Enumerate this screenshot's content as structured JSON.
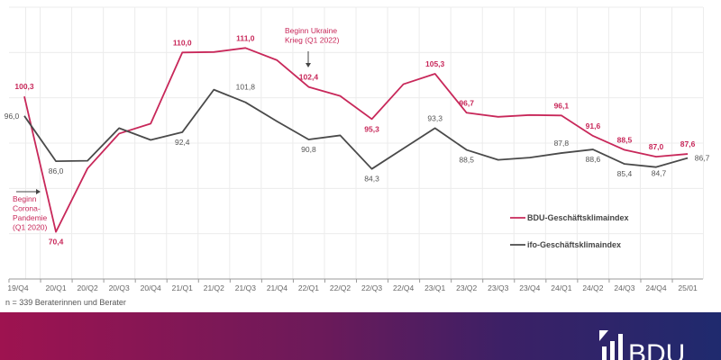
{
  "chart_data": {
    "type": "line",
    "title": "",
    "xlabel": "",
    "ylabel": "",
    "ylim": [
      60,
      120
    ],
    "grid": true,
    "legend_position": "right",
    "categories": [
      "19/Q4",
      "20/Q1",
      "20/Q2",
      "20/Q3",
      "20/Q4",
      "21/Q1",
      "21/Q2",
      "21/Q3",
      "21/Q4",
      "22/Q1",
      "22/Q2",
      "22/Q3",
      "22/Q4",
      "23/Q1",
      "23/Q2",
      "23/Q3",
      "23/Q4",
      "24/Q1",
      "24/Q2",
      "24/Q3",
      "24/Q4",
      "25/01"
    ],
    "series": [
      {
        "name": "BDU-Geschäftsklimaindex",
        "color": "#c8285a",
        "values": [
          100.3,
          70.4,
          84.4,
          92.1,
          94.3,
          110.0,
          110.1,
          111.0,
          108.3,
          102.4,
          100.4,
          95.3,
          103.0,
          105.3,
          96.7,
          95.8,
          96.2,
          96.1,
          91.6,
          88.5,
          87.0,
          87.6
        ],
        "labels": {
          "0": "100,3",
          "1": "70,4",
          "5": "110,0",
          "7": "111,0",
          "9": "102,4",
          "11": "95,3",
          "13": "105,3",
          "14": "96,7",
          "17": "96,1",
          "18": "91,6",
          "19": "88,5",
          "20": "87,0",
          "21": "87,6"
        }
      },
      {
        "name": "ifo-Geschäftsklimaindex",
        "color": "#4a4a4a",
        "values": [
          96.0,
          86.0,
          86.1,
          93.3,
          90.7,
          92.4,
          101.8,
          99.0,
          94.8,
          90.8,
          91.7,
          84.3,
          88.8,
          93.3,
          88.5,
          86.3,
          86.8,
          87.8,
          88.6,
          85.4,
          84.7,
          86.7
        ],
        "labels": {
          "0": "96,0",
          "1": "86,0",
          "5": "92,4",
          "6": "101,8",
          "9": "90,8",
          "11": "84,3",
          "13": "93,3",
          "14": "88,5",
          "17": "87,8",
          "18": "88,6",
          "19": "85,4",
          "20": "84,7",
          "21": "86,7"
        }
      }
    ],
    "annotations": [
      {
        "text_lines": [
          "Beginn",
          "Corona-",
          "Pandemie",
          "(Q1 2020)"
        ],
        "category": "20/Q1"
      },
      {
        "text_lines": [
          "Beginn Ukraine",
          "Krieg (Q1 2022)"
        ],
        "category": "22/Q1"
      }
    ]
  },
  "footnote": "n = 339 Beraterinnen und Berater",
  "logo_text": "BDU"
}
